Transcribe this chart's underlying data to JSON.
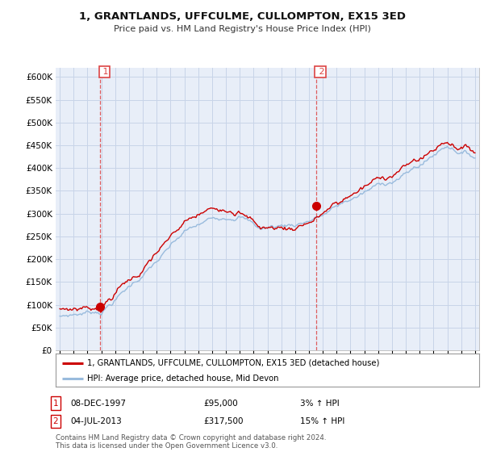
{
  "title": "1, GRANTLANDS, UFFCULME, CULLOMPTON, EX15 3ED",
  "subtitle": "Price paid vs. HM Land Registry's House Price Index (HPI)",
  "legend_line1": "1, GRANTLANDS, UFFCULME, CULLOMPTON, EX15 3ED (detached house)",
  "legend_line2": "HPI: Average price, detached house, Mid Devon",
  "transaction1_date": "08-DEC-1997",
  "transaction1_price": "£95,000",
  "transaction1_hpi": "3% ↑ HPI",
  "transaction2_date": "04-JUL-2013",
  "transaction2_price": "£317,500",
  "transaction2_hpi": "15% ↑ HPI",
  "footer": "Contains HM Land Registry data © Crown copyright and database right 2024.\nThis data is licensed under the Open Government Licence v3.0.",
  "ylim": [
    0,
    620000
  ],
  "yticks": [
    0,
    50000,
    100000,
    150000,
    200000,
    250000,
    300000,
    350000,
    400000,
    450000,
    500000,
    550000,
    600000
  ],
  "line_color_property": "#cc0000",
  "line_color_hpi": "#99bbdd",
  "marker_color": "#cc0000",
  "vline_color": "#dd4444",
  "chart_bg": "#e8eef8",
  "background_color": "#ffffff",
  "grid_color": "#c8d4e8",
  "transaction1_year": 1997.92,
  "transaction1_value": 95000,
  "transaction2_year": 2013.5,
  "transaction2_value": 317500,
  "xmin": 1995,
  "xmax": 2025
}
